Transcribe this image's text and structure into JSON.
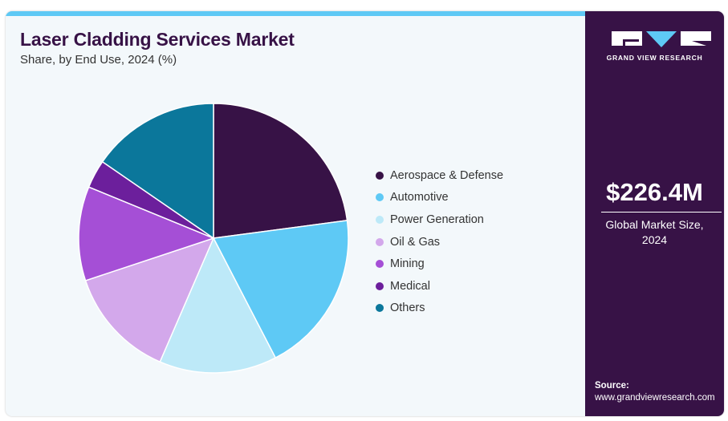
{
  "header": {
    "title": "Laser Cladding Services Market",
    "subtitle": "Share, by End Use, 2024 (%)"
  },
  "brand": {
    "name": "GRAND VIEW RESEARCH",
    "logo_icon": "gvr-logo-icon"
  },
  "summary": {
    "market_size": "$226.4M",
    "market_size_label": "Global Market Size, 2024"
  },
  "source": {
    "label": "Source:",
    "url": "www.grandviewresearch.com"
  },
  "colors": {
    "accent_bar": "#5ec9f5",
    "sidebar_bg": "#371246",
    "title": "#371246"
  },
  "chart_data": {
    "type": "pie",
    "title": "Laser Cladding Services Market",
    "subtitle": "Share, by End Use, 2024 (%)",
    "legend_position": "right",
    "start_angle": "12 o'clock, clockwise",
    "slices": [
      {
        "label": "Aerospace & Defense",
        "value": 22.9,
        "color": "#371246"
      },
      {
        "label": "Automotive",
        "value": 19.5,
        "color": "#5ec9f5"
      },
      {
        "label": "Power Generation",
        "value": 14.1,
        "color": "#bde9f8"
      },
      {
        "label": "Oil & Gas",
        "value": 13.4,
        "color": "#d3a8eb"
      },
      {
        "label": "Mining",
        "value": 11.3,
        "color": "#a54fd6"
      },
      {
        "label": "Medical",
        "value": 3.4,
        "color": "#6c1f9c"
      },
      {
        "label": "Others",
        "value": 15.4,
        "color": "#0b779b"
      }
    ]
  }
}
